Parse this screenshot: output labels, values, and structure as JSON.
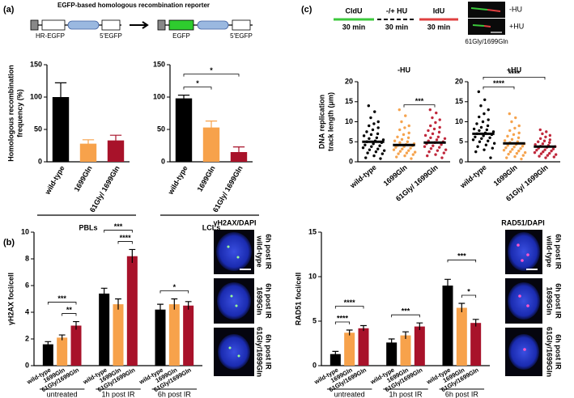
{
  "figure": {
    "panels": [
      "(a)",
      "(b)",
      "(c)"
    ],
    "schematic_a": {
      "title": "EGFP-based homologous recombination reporter",
      "left": [
        "HR-EGFP",
        "5'EGFP"
      ],
      "right": [
        "EGFP",
        "5'EGFP"
      ]
    },
    "schematic_c": {
      "steps": [
        {
          "label": "CldU",
          "time": "30 min"
        },
        {
          "label": "-/+ HU",
          "time": "30 min"
        },
        {
          "label": "IdU",
          "time": "30 min"
        }
      ],
      "conditions": [
        "-HU",
        "+HU"
      ],
      "image_label": "61Gly/1699Gln"
    },
    "micrographs": [
      {
        "title": "γH2AX/DAPI",
        "labels": [
          [
            "wild-type",
            "6h post IR"
          ],
          [
            "1699Gln",
            "6h post IR"
          ],
          [
            "61Gly/1699Gln",
            "6h post IR"
          ]
        ]
      },
      {
        "title": "RAD51/DAPI",
        "labels": [
          [
            "wild-type",
            "6h post IR"
          ],
          [
            "1699Gln",
            "6h post IR"
          ],
          [
            "61Gly/1699Gln",
            "6h post IR"
          ]
        ]
      }
    ]
  },
  "chart_data": [
    {
      "type": "bar",
      "ylabel": [
        "Homologous recombination",
        "frequency (%)"
      ],
      "categories": [
        "wild-type",
        "1699Gln",
        "61Gly/ 1699Gln"
      ],
      "values": [
        100,
        28,
        33
      ],
      "errors": [
        22,
        6,
        8
      ],
      "colors": [
        "#000000",
        "#f7a24b",
        "#a8122a"
      ],
      "ylim": [
        0,
        150
      ],
      "yticks": [
        0,
        50,
        100,
        150
      ],
      "group": "PBLs",
      "brackets": []
    },
    {
      "type": "bar",
      "categories": [
        "wild-type",
        "1699Gln",
        "61Gly/ 1699Gln"
      ],
      "values": [
        98,
        53,
        15
      ],
      "errors": [
        5,
        10,
        8
      ],
      "colors": [
        "#000000",
        "#f7a24b",
        "#a8122a"
      ],
      "ylim": [
        0,
        150
      ],
      "yticks": [
        0,
        50,
        100,
        150
      ],
      "group": "LCLs",
      "brackets": [
        {
          "between": [
            0,
            1
          ],
          "label": "*"
        },
        {
          "between": [
            0,
            2
          ],
          "label": "*"
        }
      ]
    },
    {
      "type": "dotplot",
      "title": "-HU",
      "ylabel": [
        "DNA replication",
        "track length (μm)"
      ],
      "categories": [
        "wild-type",
        "1699Gln",
        "61Gly/ 1699Gln"
      ],
      "colors": [
        "#000000",
        "#f5a34e",
        "#c0283c"
      ],
      "ylim": [
        0,
        20
      ],
      "yticks": [
        0,
        5,
        10,
        15,
        20
      ],
      "means": [
        5,
        4.2,
        4.8
      ],
      "points": [
        [
          14,
          12.5,
          11,
          10,
          9.5,
          9,
          8.5,
          8,
          7.5,
          7,
          6.8,
          6.5,
          6,
          5.8,
          5.5,
          5.2,
          5,
          4.8,
          4.5,
          4.2,
          4,
          3.8,
          3.5,
          3.2,
          3,
          2.8,
          2.5,
          2.2,
          2,
          1.5,
          1,
          0.8
        ],
        [
          13,
          11.5,
          10,
          9,
          8.5,
          8,
          7.2,
          6.8,
          6.2,
          6,
          5.6,
          5.2,
          5,
          4.8,
          4.5,
          4.3,
          4.1,
          4,
          3.8,
          3.6,
          3.4,
          3.2,
          3,
          2.8,
          2.6,
          2.4,
          2.2,
          2,
          1.8,
          1.5,
          1.2,
          0.8
        ],
        [
          13,
          12.2,
          11,
          10.5,
          9.8,
          9,
          8.6,
          8.2,
          7.8,
          7.4,
          7,
          6.6,
          6.2,
          6,
          5.8,
          5.5,
          5.2,
          5,
          4.8,
          4.5,
          4.3,
          4,
          3.8,
          3.6,
          3.3,
          3,
          2.8,
          2.5,
          2.2,
          1.8,
          1.5,
          1
        ]
      ],
      "brackets": [
        {
          "between": [
            1,
            2
          ],
          "label": "***"
        }
      ]
    },
    {
      "type": "dotplot",
      "title": "+HU",
      "categories": [
        "wild-type",
        "1699Gln",
        "61Gly/ 1699Gln"
      ],
      "colors": [
        "#000000",
        "#f5a34e",
        "#c0283c"
      ],
      "ylim": [
        0,
        20
      ],
      "yticks": [
        0,
        5,
        10,
        15,
        20
      ],
      "means": [
        7,
        4.6,
        3.8
      ],
      "points": [
        [
          17.5,
          15.5,
          14,
          13,
          12,
          11.2,
          10.5,
          10,
          9.5,
          9,
          8.6,
          8.2,
          8,
          7.8,
          7.5,
          7.2,
          7,
          6.8,
          6.5,
          6.2,
          6,
          5.8,
          5.5,
          5.2,
          5,
          4.6,
          4.2,
          3.8,
          3.4,
          3,
          2.5,
          1
        ],
        [
          12,
          11,
          10,
          9,
          8.4,
          7.8,
          7.2,
          6.8,
          6.4,
          6,
          5.6,
          5.3,
          5,
          4.8,
          4.5,
          4.3,
          4.1,
          3.9,
          3.7,
          3.5,
          3.3,
          3.1,
          2.9,
          2.7,
          2.5,
          2.3,
          2.1,
          1.9,
          1.6,
          1.3,
          1,
          0.7
        ],
        [
          8,
          7.5,
          7,
          6.6,
          6.2,
          5.8,
          5.5,
          5.2,
          5,
          4.8,
          4.5,
          4.3,
          4.1,
          3.9,
          3.8,
          3.6,
          3.4,
          3.2,
          3,
          2.9,
          2.7,
          2.5,
          2.3,
          2.1,
          2,
          1.8,
          1.6,
          1.4,
          1.2,
          1
        ]
      ],
      "brackets": [
        {
          "between": [
            0,
            1
          ],
          "label": "****"
        },
        {
          "between": [
            0,
            2
          ],
          "label": "****"
        }
      ]
    },
    {
      "type": "grouped_bar",
      "ylabel": [
        "γH2AX foci/cell"
      ],
      "categories": [
        "untreated",
        "1h post IR",
        "6h post IR"
      ],
      "series": [
        {
          "name": "wild-type",
          "color": "#000000",
          "values": [
            1.6,
            5.4,
            4.2
          ],
          "errors": [
            0.2,
            0.4,
            0.4
          ]
        },
        {
          "name": "1699Gln",
          "color": "#f7a24b",
          "values": [
            2.1,
            4.6,
            4.6
          ],
          "errors": [
            0.2,
            0.4,
            0.4
          ]
        },
        {
          "name": "61Gly/1699Gln",
          "color": "#a8122a",
          "values": [
            3.0,
            8.2,
            4.5
          ],
          "errors": [
            0.3,
            0.5,
            0.3
          ]
        }
      ],
      "ylim": [
        0,
        10
      ],
      "yticks": [
        0,
        2,
        4,
        6,
        8,
        10
      ],
      "brackets": [
        {
          "group": 0,
          "between": [
            1,
            2
          ],
          "label": "**"
        },
        {
          "group": 0,
          "between": [
            0,
            2
          ],
          "label": "***"
        },
        {
          "group": 1,
          "between": [
            1,
            2
          ],
          "label": "****"
        },
        {
          "group": 1,
          "between": [
            0,
            2
          ],
          "label": "***"
        },
        {
          "group": 2,
          "between": [
            0,
            2
          ],
          "label": "*"
        }
      ]
    },
    {
      "type": "grouped_bar",
      "ylabel": [
        "RAD51 foci/cell"
      ],
      "categories": [
        "untreated",
        "1h post IR",
        "6h post IR"
      ],
      "series": [
        {
          "name": "wild-type",
          "color": "#000000",
          "values": [
            1.3,
            2.6,
            9.0
          ],
          "errors": [
            0.3,
            0.4,
            0.7
          ]
        },
        {
          "name": "1699Gln",
          "color": "#f7a24b",
          "values": [
            3.7,
            3.4,
            6.5
          ],
          "errors": [
            0.3,
            0.4,
            0.5
          ]
        },
        {
          "name": "61Gly/1699Gln",
          "color": "#a8122a",
          "values": [
            4.2,
            4.4,
            4.8
          ],
          "errors": [
            0.3,
            0.4,
            0.4
          ]
        }
      ],
      "ylim": [
        0,
        15
      ],
      "yticks": [
        0,
        5,
        10,
        15
      ],
      "brackets": [
        {
          "group": 0,
          "between": [
            0,
            1
          ],
          "label": "****"
        },
        {
          "group": 0,
          "between": [
            0,
            2
          ],
          "label": "****"
        },
        {
          "group": 1,
          "between": [
            0,
            2
          ],
          "label": "***"
        },
        {
          "group": 2,
          "between": [
            1,
            2
          ],
          "label": "*"
        },
        {
          "group": 2,
          "between": [
            0,
            2
          ],
          "label": "***"
        }
      ]
    }
  ]
}
